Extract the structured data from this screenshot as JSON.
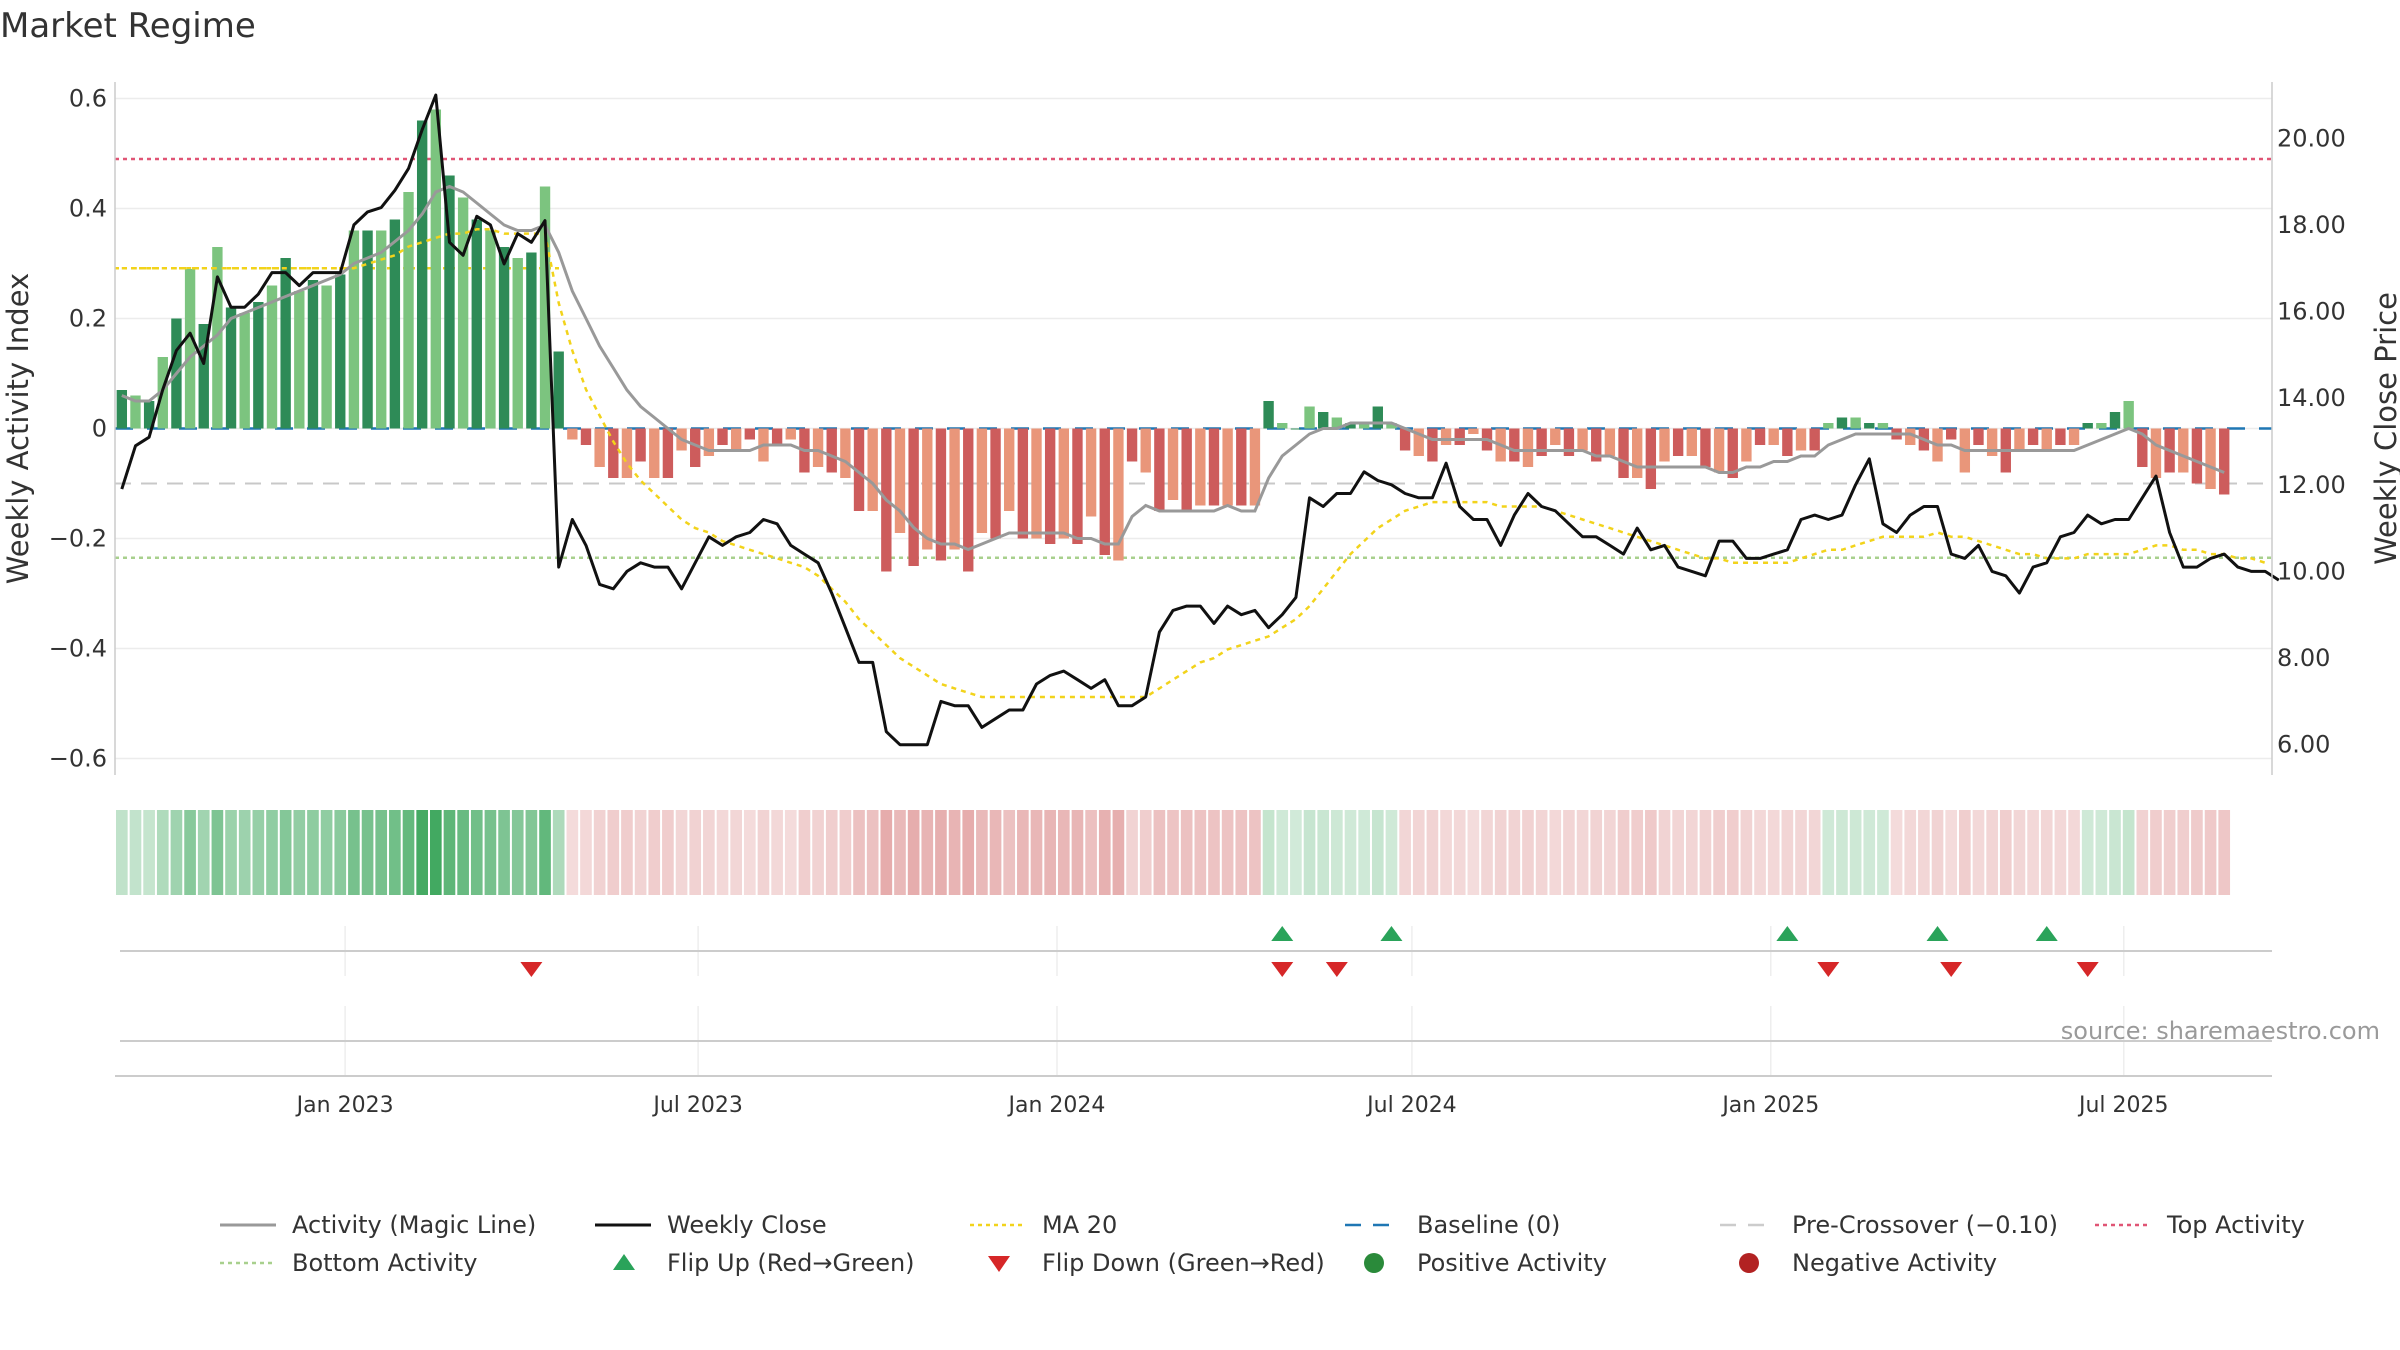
{
  "title": "Market Regime",
  "source": "source: sharemaestro.com",
  "chart_data": {
    "type": "bar",
    "title": "Market Regime",
    "xlabel": "",
    "ylabel_left": "Weekly Activity Index",
    "ylabel_right": "Weekly Close Price",
    "ylim_left": [
      -0.63,
      0.63
    ],
    "ylim_right": [
      5.3,
      21.3
    ],
    "y_ticks_left": [
      {
        "v": 0.6,
        "label": "0.6"
      },
      {
        "v": 0.4,
        "label": "0.4"
      },
      {
        "v": 0.2,
        "label": "0.2"
      },
      {
        "v": 0,
        "label": "0"
      },
      {
        "v": -0.2,
        "label": "−0.2"
      },
      {
        "v": -0.4,
        "label": "−0.4"
      },
      {
        "v": -0.6,
        "label": "−0.6"
      }
    ],
    "y_ticks_right": [
      {
        "v": 20,
        "label": "20.00"
      },
      {
        "v": 18,
        "label": "18.00"
      },
      {
        "v": 16,
        "label": "16.00"
      },
      {
        "v": 14,
        "label": "14.00"
      },
      {
        "v": 12,
        "label": "12.00"
      },
      {
        "v": 10,
        "label": "10.00"
      },
      {
        "v": 8,
        "label": "8.00"
      },
      {
        "v": 6,
        "label": "6.00"
      }
    ],
    "x_range": [
      "2022-09-05",
      "2025-09-15"
    ],
    "x_ticks": [
      {
        "date": "2023-01-01",
        "label": "Jan 2023"
      },
      {
        "date": "2023-07-01",
        "label": "Jul 2023"
      },
      {
        "date": "2024-01-01",
        "label": "Jan 2024"
      },
      {
        "date": "2024-07-01",
        "label": "Jul 2024"
      },
      {
        "date": "2025-01-01",
        "label": "Jan 2025"
      },
      {
        "date": "2025-07-01",
        "label": "Jul 2025"
      }
    ],
    "start_week": "2022-09-05",
    "activity_bars": [
      0.07,
      0.06,
      0.05,
      0.13,
      0.2,
      0.29,
      0.19,
      0.33,
      0.22,
      0.21,
      0.23,
      0.26,
      0.31,
      0.25,
      0.27,
      0.26,
      0.28,
      0.36,
      0.36,
      0.36,
      0.38,
      0.43,
      0.56,
      0.58,
      0.46,
      0.42,
      0.38,
      0.36,
      0.33,
      0.31,
      0.32,
      0.44,
      0.14,
      -0.02,
      -0.03,
      -0.07,
      -0.09,
      -0.09,
      -0.06,
      -0.09,
      -0.09,
      -0.04,
      -0.07,
      -0.05,
      -0.03,
      -0.04,
      -0.02,
      -0.06,
      -0.03,
      -0.02,
      -0.08,
      -0.07,
      -0.08,
      -0.09,
      -0.15,
      -0.15,
      -0.26,
      -0.19,
      -0.25,
      -0.22,
      -0.24,
      -0.22,
      -0.26,
      -0.19,
      -0.2,
      -0.15,
      -0.2,
      -0.2,
      -0.21,
      -0.2,
      -0.21,
      -0.16,
      -0.23,
      -0.24,
      -0.06,
      -0.08,
      -0.15,
      -0.13,
      -0.15,
      -0.14,
      -0.14,
      -0.14,
      -0.14,
      -0.14,
      0.05,
      0.01,
      0.0,
      0.04,
      0.03,
      0.02,
      0.01,
      0.01,
      0.04,
      0.01,
      -0.04,
      -0.05,
      -0.06,
      -0.03,
      -0.03,
      -0.01,
      -0.04,
      -0.06,
      -0.06,
      -0.07,
      -0.05,
      -0.03,
      -0.05,
      -0.04,
      -0.06,
      -0.05,
      -0.09,
      -0.09,
      -0.11,
      -0.06,
      -0.05,
      -0.05,
      -0.07,
      -0.08,
      -0.09,
      -0.06,
      -0.03,
      -0.03,
      -0.05,
      -0.04,
      -0.04,
      0.01,
      0.02,
      0.02,
      0.01,
      0.01,
      -0.02,
      -0.03,
      -0.04,
      -0.06,
      -0.02,
      -0.08,
      -0.03,
      -0.05,
      -0.08,
      -0.04,
      -0.03,
      -0.04,
      -0.03,
      -0.03,
      0.01,
      0.01,
      0.03,
      0.05,
      -0.07,
      -0.09,
      -0.08,
      -0.08,
      -0.1,
      -0.11,
      -0.12
    ],
    "magic_line": [
      0.06,
      0.05,
      0.05,
      0.07,
      0.1,
      0.13,
      0.15,
      0.17,
      0.2,
      0.21,
      0.22,
      0.23,
      0.24,
      0.25,
      0.26,
      0.27,
      0.28,
      0.3,
      0.31,
      0.32,
      0.34,
      0.36,
      0.39,
      0.43,
      0.44,
      0.43,
      0.41,
      0.39,
      0.37,
      0.36,
      0.36,
      0.37,
      0.32,
      0.25,
      0.2,
      0.15,
      0.11,
      0.07,
      0.04,
      0.02,
      0.0,
      -0.02,
      -0.03,
      -0.04,
      -0.04,
      -0.04,
      -0.04,
      -0.03,
      -0.03,
      -0.03,
      -0.04,
      -0.04,
      -0.05,
      -0.06,
      -0.08,
      -0.1,
      -0.13,
      -0.15,
      -0.18,
      -0.2,
      -0.21,
      -0.21,
      -0.22,
      -0.21,
      -0.2,
      -0.19,
      -0.19,
      -0.19,
      -0.19,
      -0.19,
      -0.2,
      -0.2,
      -0.21,
      -0.21,
      -0.16,
      -0.14,
      -0.15,
      -0.15,
      -0.15,
      -0.15,
      -0.15,
      -0.14,
      -0.15,
      -0.15,
      -0.09,
      -0.05,
      -0.03,
      -0.01,
      0.0,
      0.0,
      0.01,
      0.01,
      0.01,
      0.01,
      0.0,
      -0.01,
      -0.02,
      -0.02,
      -0.02,
      -0.02,
      -0.02,
      -0.03,
      -0.04,
      -0.04,
      -0.04,
      -0.04,
      -0.04,
      -0.04,
      -0.05,
      -0.05,
      -0.06,
      -0.07,
      -0.07,
      -0.07,
      -0.07,
      -0.07,
      -0.07,
      -0.08,
      -0.08,
      -0.07,
      -0.07,
      -0.06,
      -0.06,
      -0.05,
      -0.05,
      -0.03,
      -0.02,
      -0.01,
      -0.01,
      -0.01,
      -0.01,
      -0.01,
      -0.02,
      -0.03,
      -0.03,
      -0.04,
      -0.04,
      -0.04,
      -0.04,
      -0.04,
      -0.04,
      -0.04,
      -0.04,
      -0.04,
      -0.03,
      -0.02,
      -0.01,
      0.0,
      -0.01,
      -0.03,
      -0.04,
      -0.05,
      -0.06,
      -0.07,
      -0.08
    ],
    "weekly_close": [
      11.9,
      12.9,
      13.1,
      14.2,
      15.1,
      15.5,
      14.8,
      16.8,
      16.1,
      16.1,
      16.4,
      16.9,
      16.9,
      16.6,
      16.9,
      16.9,
      16.9,
      18.0,
      18.3,
      18.4,
      18.8,
      19.3,
      20.2,
      21.0,
      17.6,
      17.3,
      18.2,
      18.0,
      17.1,
      17.8,
      17.6,
      18.1,
      10.1,
      11.2,
      10.6,
      9.7,
      9.6,
      10.0,
      10.2,
      10.1,
      10.1,
      9.6,
      10.2,
      10.8,
      10.6,
      10.8,
      10.9,
      11.2,
      11.1,
      10.6,
      10.4,
      10.2,
      9.5,
      8.7,
      7.9,
      7.9,
      6.3,
      6.0,
      6.0,
      6.0,
      7.0,
      6.9,
      6.9,
      6.4,
      6.6,
      6.8,
      6.8,
      7.4,
      7.6,
      7.7,
      7.5,
      7.3,
      7.5,
      6.9,
      6.9,
      7.1,
      8.6,
      9.1,
      9.2,
      9.2,
      8.8,
      9.2,
      9.0,
      9.1,
      8.7,
      9.0,
      9.4,
      11.7,
      11.5,
      11.8,
      11.8,
      12.3,
      12.1,
      12.0,
      11.8,
      11.7,
      11.7,
      12.5,
      11.5,
      11.2,
      11.2,
      10.6,
      11.3,
      11.8,
      11.5,
      11.4,
      11.1,
      10.8,
      10.8,
      10.6,
      10.4,
      11.0,
      10.5,
      10.6,
      10.1,
      10.0,
      9.9,
      10.7,
      10.7,
      10.3,
      10.3,
      10.4,
      10.5,
      11.2,
      11.3,
      11.2,
      11.3,
      12.0,
      12.6,
      11.1,
      10.9,
      11.3,
      11.5,
      11.5,
      10.4,
      10.3,
      10.6,
      10.0,
      9.9,
      9.5,
      10.1,
      10.2,
      10.8,
      10.9,
      11.3,
      11.1,
      11.2,
      11.2,
      11.7,
      12.2,
      10.9,
      10.1,
      10.1,
      10.3,
      10.4,
      10.1,
      10.0,
      10.0,
      9.8
    ],
    "ma20": [
      17.0,
      17.0,
      17.0,
      17.0,
      17.0,
      17.0,
      17.0,
      17.0,
      17.0,
      17.0,
      17.0,
      17.0,
      17.0,
      17.0,
      17.0,
      17.0,
      17.0,
      17.0,
      17.1,
      17.2,
      17.3,
      17.5,
      17.6,
      17.7,
      17.8,
      17.8,
      17.9,
      17.9,
      17.8,
      17.8,
      17.8,
      17.8,
      16.2,
      15.1,
      14.2,
      13.6,
      13.0,
      12.5,
      12.1,
      11.8,
      11.5,
      11.2,
      11.0,
      10.9,
      10.7,
      10.6,
      10.5,
      10.4,
      10.3,
      10.2,
      10.1,
      9.9,
      9.6,
      9.3,
      8.9,
      8.6,
      8.3,
      8.0,
      7.8,
      7.6,
      7.4,
      7.3,
      7.2,
      7.1,
      7.1,
      7.1,
      7.1,
      7.1,
      7.1,
      7.1,
      7.1,
      7.1,
      7.1,
      7.1,
      7.1,
      7.1,
      7.3,
      7.5,
      7.7,
      7.9,
      8.0,
      8.2,
      8.3,
      8.4,
      8.5,
      8.7,
      8.9,
      9.2,
      9.6,
      10.0,
      10.4,
      10.7,
      11.0,
      11.2,
      11.4,
      11.5,
      11.6,
      11.6,
      11.6,
      11.6,
      11.6,
      11.5,
      11.5,
      11.5,
      11.5,
      11.4,
      11.3,
      11.2,
      11.1,
      11.0,
      10.9,
      10.8,
      10.7,
      10.6,
      10.5,
      10.4,
      10.3,
      10.3,
      10.2,
      10.2,
      10.2,
      10.2,
      10.2,
      10.3,
      10.4,
      10.5,
      10.5,
      10.6,
      10.7,
      10.8,
      10.8,
      10.8,
      10.8,
      10.9,
      10.8,
      10.8,
      10.7,
      10.6,
      10.5,
      10.4,
      10.4,
      10.3,
      10.3,
      10.3,
      10.4,
      10.4,
      10.4,
      10.4,
      10.5,
      10.6,
      10.6,
      10.5,
      10.5,
      10.4,
      10.4,
      10.3,
      10.3,
      10.2
    ],
    "top_activity": 0.49,
    "bottom_activity": -0.235,
    "baseline": 0,
    "pre_crossover": -0.1,
    "bottom_activity_segment_end_week": 33,
    "flip_up_weeks": [
      85,
      93,
      122,
      133,
      141
    ],
    "flip_down_weeks": [
      30,
      85,
      89,
      125,
      134,
      144
    ],
    "legend": [
      {
        "label": "Activity (Magic Line)",
        "style": "line",
        "color": "#999999"
      },
      {
        "label": "Weekly Close",
        "style": "line",
        "color": "#111111"
      },
      {
        "label": "MA 20",
        "style": "dotted",
        "color": "#f2d31b"
      },
      {
        "label": "Baseline (0)",
        "style": "dashed",
        "color": "#1f77b4"
      },
      {
        "label": "Pre-Crossover (−0.10)",
        "style": "dashed",
        "color": "#cccccc"
      },
      {
        "label": "Top Activity",
        "style": "dotted",
        "color": "#e05575"
      },
      {
        "label": "Bottom Activity",
        "style": "dotted",
        "color": "#a8d08d"
      },
      {
        "label": "Flip Up (Red→Green)",
        "style": "triangle-up",
        "color": "#2aa35a"
      },
      {
        "label": "Flip Down (Green→Red)",
        "style": "triangle-down",
        "color": "#d62728"
      },
      {
        "label": "Positive Activity",
        "style": "dot",
        "color": "#2a8a3a"
      },
      {
        "label": "Negative Activity",
        "style": "dot",
        "color": "#b22222"
      }
    ]
  },
  "colors": {
    "pos_dark": "#2e8b57",
    "pos_light": "#7cc47f",
    "neg_dark": "#cd5c5c",
    "neg_light": "#e9967a",
    "grid": "#ececec",
    "axis": "#cccccc"
  }
}
